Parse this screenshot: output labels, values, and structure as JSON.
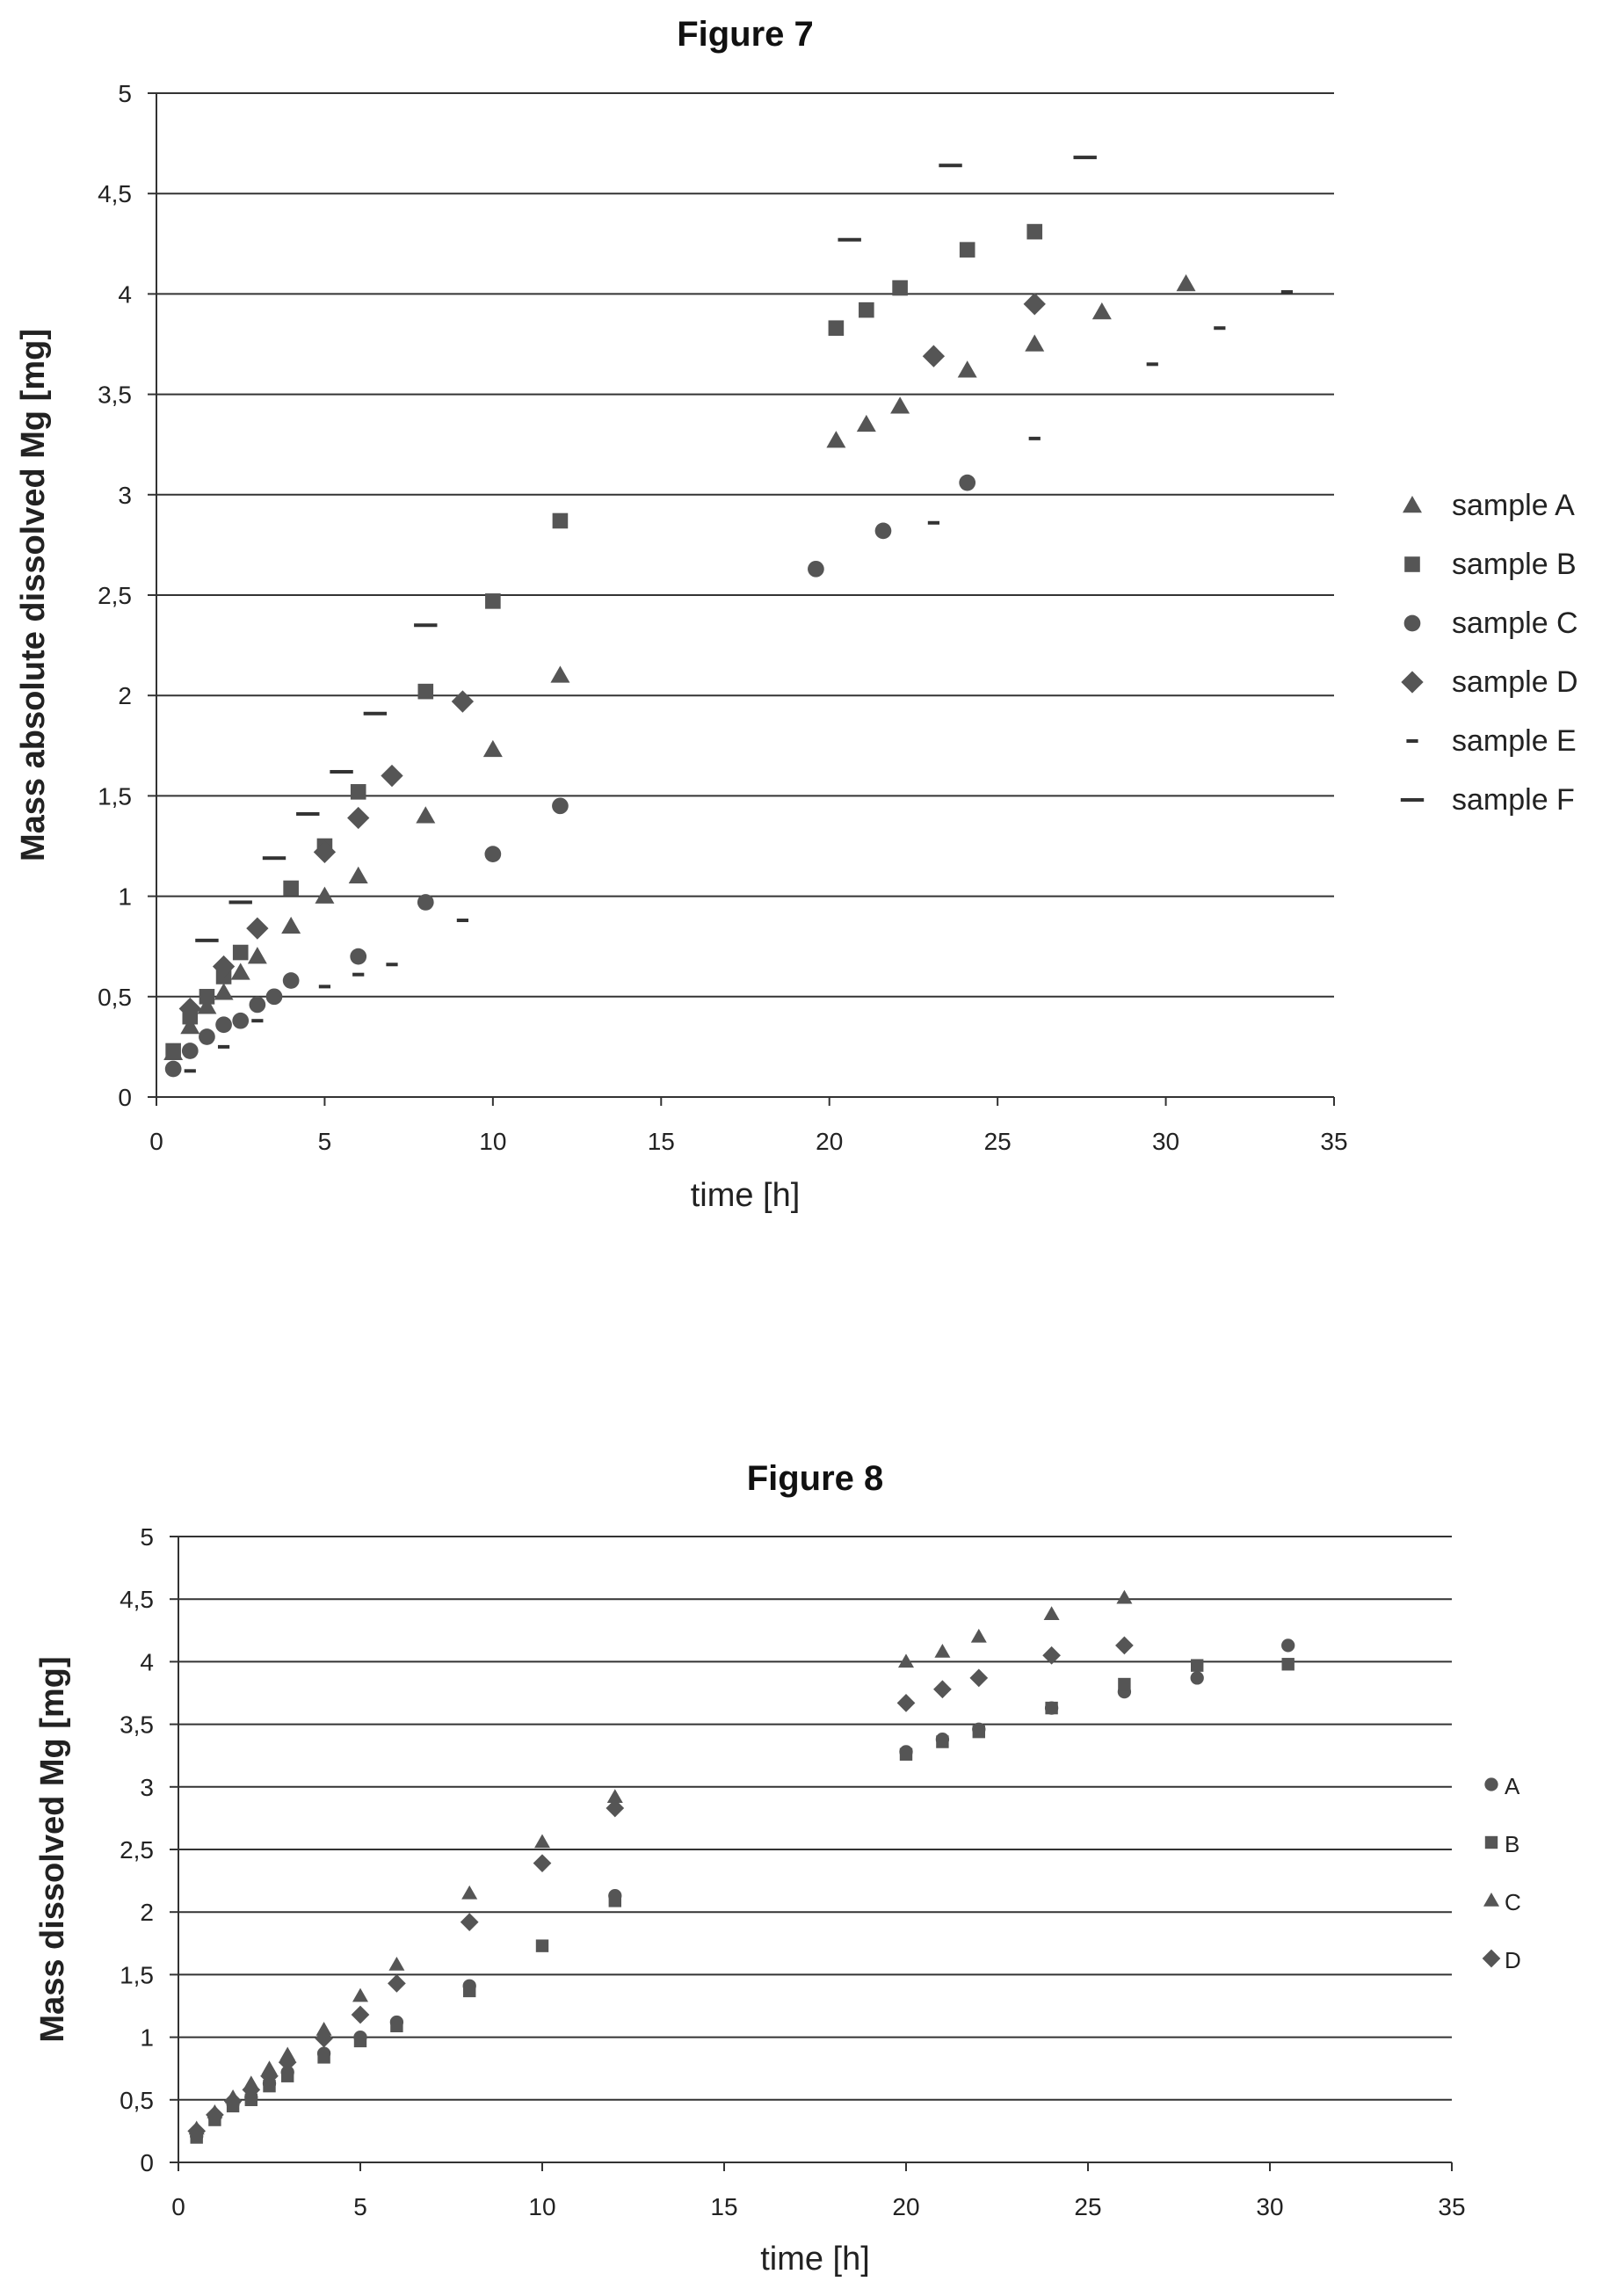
{
  "chart_data": [
    {
      "type": "scatter",
      "title": "Figure 7",
      "xlabel": "time [h]",
      "ylabel": "Mass absolute dissolved Mg [mg]",
      "xlim": [
        0,
        35
      ],
      "ylim": [
        0,
        5
      ],
      "x_ticks": [
        "0",
        "5",
        "10",
        "15",
        "20",
        "25",
        "30",
        "35"
      ],
      "y_ticks": [
        "0",
        "0,5",
        "1",
        "1,5",
        "2",
        "2,5",
        "3",
        "3,5",
        "4",
        "4,5",
        "5"
      ],
      "grid": "horizontal",
      "legend_position": "right",
      "series": [
        {
          "name": "sample A",
          "marker": "triangle",
          "x": [
            0.5,
            1,
            1.5,
            2,
            2.5,
            3,
            4,
            5,
            6,
            8,
            10,
            12,
            20.2,
            21.1,
            22.1,
            24.1,
            26.1,
            28.1,
            30.6
          ],
          "y": [
            0.22,
            0.35,
            0.45,
            0.52,
            0.62,
            0.7,
            0.85,
            1.0,
            1.1,
            1.4,
            1.73,
            2.1,
            3.27,
            3.35,
            3.44,
            3.62,
            3.75,
            3.91,
            4.05
          ]
        },
        {
          "name": "sample B",
          "marker": "square",
          "x": [
            0.5,
            1,
            1.5,
            2,
            2.5,
            4,
            5,
            6,
            8,
            10,
            12,
            20.2,
            21.1,
            22.1,
            24.1,
            26.1
          ],
          "y": [
            0.23,
            0.4,
            0.5,
            0.6,
            0.72,
            1.04,
            1.25,
            1.52,
            2.02,
            2.47,
            2.87,
            3.83,
            3.92,
            4.03,
            4.22,
            4.31
          ]
        },
        {
          "name": "sample C",
          "marker": "circle",
          "x": [
            0.5,
            1,
            1.5,
            2,
            2.5,
            3,
            3.5,
            4,
            6,
            8,
            10,
            12,
            19.6,
            21.6,
            24.1
          ],
          "y": [
            0.14,
            0.23,
            0.3,
            0.36,
            0.38,
            0.46,
            0.5,
            0.58,
            0.7,
            0.97,
            1.21,
            1.45,
            2.63,
            2.82,
            3.06
          ]
        },
        {
          "name": "sample D",
          "marker": "diamond",
          "x": [
            1,
            2,
            3,
            5,
            6,
            7,
            9.1,
            23.1,
            26.1
          ],
          "y": [
            0.44,
            0.65,
            0.84,
            1.22,
            1.39,
            1.6,
            1.97,
            3.69,
            3.95
          ]
        },
        {
          "name": "sample E",
          "marker": "short-dash",
          "x": [
            1,
            2,
            3,
            5,
            6,
            7,
            9.1,
            23.1,
            26.1,
            29.6,
            31.6,
            33.6
          ],
          "y": [
            0.13,
            0.25,
            0.38,
            0.55,
            0.61,
            0.66,
            0.88,
            2.86,
            3.28,
            3.65,
            3.83,
            4.01
          ]
        },
        {
          "name": "sample F",
          "marker": "long-dash",
          "x": [
            1.5,
            2.5,
            3.5,
            4.5,
            5.5,
            6.5,
            8,
            20.6,
            23.6,
            27.6
          ],
          "y": [
            0.78,
            0.97,
            1.19,
            1.41,
            1.62,
            1.91,
            2.35,
            4.27,
            4.64,
            4.68
          ]
        }
      ]
    },
    {
      "type": "scatter",
      "title": "Figure 8",
      "xlabel": "time [h]",
      "ylabel": "Mass dissolved Mg [mg]",
      "xlim": [
        0,
        35
      ],
      "ylim": [
        0,
        5
      ],
      "x_ticks": [
        "0",
        "5",
        "10",
        "15",
        "20",
        "25",
        "30",
        "35"
      ],
      "y_ticks": [
        "0",
        "0,5",
        "1",
        "1,5",
        "2",
        "2,5",
        "3",
        "3,5",
        "4",
        "4,5",
        "5"
      ],
      "grid": "horizontal",
      "legend_position": "right",
      "series": [
        {
          "name": "A",
          "marker": "circle",
          "x": [
            0.5,
            1,
            1.5,
            2,
            2.5,
            3,
            4,
            5,
            6,
            8,
            12,
            20,
            21,
            22,
            24,
            26,
            28,
            30.5
          ],
          "y": [
            0.21,
            0.36,
            0.47,
            0.52,
            0.63,
            0.72,
            0.87,
            1.0,
            1.12,
            1.41,
            2.13,
            3.28,
            3.38,
            3.46,
            3.63,
            3.76,
            3.87,
            4.13
          ]
        },
        {
          "name": "B",
          "marker": "square",
          "x": [
            0.5,
            1,
            1.5,
            2,
            2.5,
            3,
            4,
            5,
            6,
            8,
            10,
            12,
            20,
            21,
            22,
            24,
            26,
            28,
            30.5
          ],
          "y": [
            0.2,
            0.34,
            0.45,
            0.5,
            0.61,
            0.69,
            0.84,
            0.97,
            1.09,
            1.37,
            1.73,
            2.09,
            3.26,
            3.36,
            3.44,
            3.63,
            3.82,
            3.97,
            3.98
          ]
        },
        {
          "name": "C",
          "marker": "triangle",
          "x": [
            0.5,
            1,
            1.5,
            2,
            2.5,
            3,
            4,
            5,
            6,
            8,
            10,
            12,
            20,
            21,
            22,
            24,
            26
          ],
          "y": [
            0.27,
            0.4,
            0.52,
            0.63,
            0.75,
            0.86,
            1.06,
            1.33,
            1.58,
            2.15,
            2.56,
            2.92,
            4.0,
            4.08,
            4.2,
            4.38,
            4.51
          ]
        },
        {
          "name": "D",
          "marker": "diamond",
          "x": [
            0.5,
            1,
            1.5,
            2,
            2.5,
            3,
            4,
            5,
            6,
            8,
            10,
            12,
            20,
            21,
            22,
            24,
            26
          ],
          "y": [
            0.25,
            0.38,
            0.49,
            0.58,
            0.69,
            0.8,
            0.99,
            1.18,
            1.43,
            1.92,
            2.39,
            2.83,
            3.67,
            3.78,
            3.87,
            4.05,
            4.13
          ]
        }
      ]
    }
  ]
}
